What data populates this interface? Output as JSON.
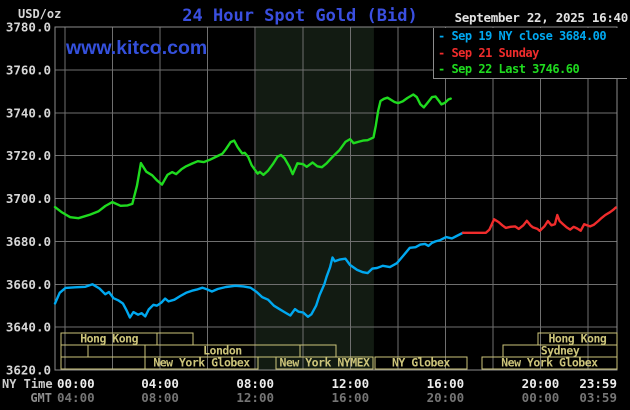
{
  "header": {
    "title": "24 Hour Spot Gold (Bid)",
    "unit_label": "USD/oz",
    "datetime": "September 22, 2025 16:40",
    "watermark": "www.kitco.com"
  },
  "axis_corner": {
    "ny_time_label": "NY Time",
    "gmt_label": "GMT"
  },
  "legend": {
    "rows": [
      {
        "label": "Sep 19 NY close 3684.00",
        "color": "#00a8f0"
      },
      {
        "label": "Sep 21 Sunday",
        "color": "#f02c2c"
      },
      {
        "label": "Sep 22 Last 3746.60",
        "color": "#1fdb1f"
      }
    ]
  },
  "chart_data": {
    "type": "line",
    "title": "24 Hour Spot Gold (Bid)",
    "ylabel": "USD/oz",
    "y_axis": {
      "min": 3620,
      "max": 3780,
      "step": 20
    },
    "x_ticks": [
      {
        "ny": "00:00",
        "gmt": "04:00"
      },
      {
        "ny": "04:00",
        "gmt": "08:00"
      },
      {
        "ny": "08:00",
        "gmt": "12:00"
      },
      {
        "ny": "12:00",
        "gmt": "16:00"
      },
      {
        "ny": "16:00",
        "gmt": "20:00"
      },
      {
        "ny": "20:00",
        "gmt": "00:00"
      },
      {
        "ny": "23:59",
        "gmt": "03:59"
      }
    ],
    "colors": {
      "grid": "#6f6f6f",
      "border": "#8c8c8c",
      "band": "#121b12",
      "session": "#ccc47a"
    },
    "nymex_band": {
      "start_h": 8.58,
      "end_h": 13.62
    },
    "sessions": [
      {
        "row": 0,
        "start_h": 0.26,
        "end_h": 4.36,
        "label": "Hong Kong"
      },
      {
        "row": 0,
        "start_h": 4.36,
        "end_h": 5.89,
        "label": ""
      },
      {
        "row": 0,
        "start_h": 20.62,
        "end_h": 24,
        "label": "Hong Kong"
      },
      {
        "row": 1,
        "start_h": 0.26,
        "end_h": 1.41,
        "label": ""
      },
      {
        "row": 1,
        "start_h": 1.41,
        "end_h": 3.84,
        "label": ""
      },
      {
        "row": 1,
        "start_h": 3.84,
        "end_h": 10.46,
        "label": "London"
      },
      {
        "row": 1,
        "start_h": 10.46,
        "end_h": 12.0,
        "label": ""
      },
      {
        "row": 1,
        "start_h": 19.13,
        "end_h": 24,
        "label": "Sydney"
      },
      {
        "row": 2,
        "start_h": 0.26,
        "end_h": 3.84,
        "label": ""
      },
      {
        "row": 2,
        "start_h": 3.84,
        "end_h": 8.67,
        "label": "New York Globex"
      },
      {
        "row": 2,
        "start_h": 9.44,
        "end_h": 13.58,
        "label": "New York NYMEX"
      },
      {
        "row": 2,
        "start_h": 13.66,
        "end_h": 17.59,
        "label": "NY Globex"
      },
      {
        "row": 2,
        "start_h": 18.23,
        "end_h": 24,
        "label": "New York Globex"
      }
    ],
    "series": [
      {
        "id": "sep19-ny-close",
        "name": "Sep 19 NY close 3684.00",
        "color": "#00a8f0",
        "points": [
          [
            0,
            3651
          ],
          [
            0.2,
            3656
          ],
          [
            0.45,
            3658.3
          ],
          [
            0.85,
            3658.6
          ],
          [
            1.3,
            3658.8
          ],
          [
            1.6,
            3660
          ],
          [
            1.9,
            3658
          ],
          [
            2.15,
            3655.3
          ],
          [
            2.3,
            3656.4
          ],
          [
            2.5,
            3653.5
          ],
          [
            2.7,
            3652.5
          ],
          [
            2.9,
            3651
          ],
          [
            3.05,
            3648
          ],
          [
            3.2,
            3644.5
          ],
          [
            3.35,
            3647
          ],
          [
            3.55,
            3645.8
          ],
          [
            3.7,
            3646.5
          ],
          [
            3.85,
            3645
          ],
          [
            4.0,
            3648.2
          ],
          [
            4.2,
            3650.4
          ],
          [
            4.35,
            3650
          ],
          [
            4.55,
            3651.5
          ],
          [
            4.7,
            3653.3
          ],
          [
            4.85,
            3652
          ],
          [
            5.1,
            3652.8
          ],
          [
            5.35,
            3654.5
          ],
          [
            5.6,
            3656
          ],
          [
            5.85,
            3657
          ],
          [
            6.05,
            3657.5
          ],
          [
            6.3,
            3658.4
          ],
          [
            6.5,
            3657.6
          ],
          [
            6.7,
            3656.6
          ],
          [
            6.95,
            3657.8
          ],
          [
            7.3,
            3658.7
          ],
          [
            7.7,
            3659.3
          ],
          [
            8.05,
            3659
          ],
          [
            8.35,
            3658.4
          ],
          [
            8.6,
            3656.5
          ],
          [
            8.85,
            3654
          ],
          [
            9.1,
            3652.8
          ],
          [
            9.35,
            3650
          ],
          [
            9.6,
            3648.3
          ],
          [
            9.8,
            3647
          ],
          [
            10.05,
            3645.4
          ],
          [
            10.25,
            3648.4
          ],
          [
            10.4,
            3647.2
          ],
          [
            10.6,
            3646.8
          ],
          [
            10.8,
            3644.8
          ],
          [
            10.95,
            3646
          ],
          [
            11.15,
            3650
          ],
          [
            11.3,
            3655
          ],
          [
            11.5,
            3660
          ],
          [
            11.6,
            3663.5
          ],
          [
            11.75,
            3668
          ],
          [
            11.85,
            3672.5
          ],
          [
            11.95,
            3670.7
          ],
          [
            12.15,
            3671.5
          ],
          [
            12.4,
            3671.9
          ],
          [
            12.6,
            3669
          ],
          [
            12.9,
            3666.7
          ],
          [
            13.15,
            3665.6
          ],
          [
            13.35,
            3665.2
          ],
          [
            13.55,
            3667.3
          ],
          [
            13.75,
            3667.6
          ],
          [
            14.0,
            3668.6
          ],
          [
            14.3,
            3668
          ],
          [
            14.6,
            3669.8
          ],
          [
            14.85,
            3673
          ],
          [
            15.15,
            3677
          ],
          [
            15.4,
            3677.3
          ],
          [
            15.6,
            3678.5
          ],
          [
            15.8,
            3678.8
          ],
          [
            15.95,
            3677.9
          ],
          [
            16.1,
            3679.3
          ],
          [
            16.25,
            3680
          ],
          [
            16.45,
            3680.6
          ],
          [
            16.7,
            3682
          ],
          [
            16.95,
            3681.4
          ],
          [
            17.15,
            3682.5
          ],
          [
            17.42,
            3684
          ]
        ]
      },
      {
        "id": "sep21-sunday",
        "name": "Sep 21 Sunday",
        "color": "#f02c2c",
        "points": [
          [
            17.42,
            3684
          ],
          [
            18.4,
            3684
          ],
          [
            18.55,
            3685.5
          ],
          [
            18.75,
            3690.3
          ],
          [
            18.95,
            3689
          ],
          [
            19.1,
            3687.5
          ],
          [
            19.25,
            3686.3
          ],
          [
            19.45,
            3686.8
          ],
          [
            19.65,
            3687
          ],
          [
            19.8,
            3685.8
          ],
          [
            20.0,
            3687.5
          ],
          [
            20.15,
            3689.6
          ],
          [
            20.3,
            3687.5
          ],
          [
            20.4,
            3686.6
          ],
          [
            20.6,
            3685.8
          ],
          [
            20.7,
            3684.9
          ],
          [
            20.9,
            3687
          ],
          [
            21.05,
            3689.5
          ],
          [
            21.2,
            3687.5
          ],
          [
            21.35,
            3688
          ],
          [
            21.45,
            3692.3
          ],
          [
            21.55,
            3689.5
          ],
          [
            21.7,
            3688
          ],
          [
            21.85,
            3686.5
          ],
          [
            22.0,
            3685.5
          ],
          [
            22.15,
            3686.8
          ],
          [
            22.3,
            3686
          ],
          [
            22.45,
            3685
          ],
          [
            22.6,
            3688
          ],
          [
            22.85,
            3687
          ],
          [
            23.0,
            3687.7
          ],
          [
            23.2,
            3689.5
          ],
          [
            23.35,
            3691
          ],
          [
            23.5,
            3692.3
          ],
          [
            23.7,
            3693.6
          ],
          [
            23.85,
            3694.8
          ],
          [
            23.95,
            3695.8
          ]
        ]
      },
      {
        "id": "sep22-last",
        "name": "Sep 22 Last 3746.60",
        "color": "#1fdb1f",
        "points": [
          [
            0,
            3696
          ],
          [
            0.3,
            3693.5
          ],
          [
            0.65,
            3691.3
          ],
          [
            1.0,
            3690.8
          ],
          [
            1.5,
            3692.5
          ],
          [
            1.85,
            3694
          ],
          [
            2.15,
            3696.5
          ],
          [
            2.45,
            3698.3
          ],
          [
            2.8,
            3696.6
          ],
          [
            3.1,
            3696.8
          ],
          [
            3.3,
            3697.5
          ],
          [
            3.5,
            3706
          ],
          [
            3.67,
            3716.5
          ],
          [
            3.9,
            3712.5
          ],
          [
            4.15,
            3710.8
          ],
          [
            4.35,
            3708.5
          ],
          [
            4.57,
            3706.5
          ],
          [
            4.8,
            3711
          ],
          [
            5.0,
            3712.3
          ],
          [
            5.17,
            3711.4
          ],
          [
            5.4,
            3713.6
          ],
          [
            5.6,
            3715
          ],
          [
            5.85,
            3716.3
          ],
          [
            6.1,
            3717.4
          ],
          [
            6.35,
            3717
          ],
          [
            6.6,
            3718
          ],
          [
            6.9,
            3719.6
          ],
          [
            7.15,
            3720.9
          ],
          [
            7.3,
            3723
          ],
          [
            7.5,
            3726.3
          ],
          [
            7.65,
            3727
          ],
          [
            7.8,
            3724
          ],
          [
            7.9,
            3722.4
          ],
          [
            8.0,
            3721
          ],
          [
            8.1,
            3721.3
          ],
          [
            8.25,
            3719.4
          ],
          [
            8.4,
            3715.5
          ],
          [
            8.55,
            3713.2
          ],
          [
            8.65,
            3711.6
          ],
          [
            8.75,
            3712.4
          ],
          [
            8.9,
            3711
          ],
          [
            9.1,
            3713
          ],
          [
            9.3,
            3716
          ],
          [
            9.5,
            3719.5
          ],
          [
            9.65,
            3720.3
          ],
          [
            9.8,
            3718.8
          ],
          [
            10.0,
            3715
          ],
          [
            10.15,
            3711.4
          ],
          [
            10.35,
            3716.4
          ],
          [
            10.6,
            3716
          ],
          [
            10.75,
            3714.8
          ],
          [
            11.0,
            3716.8
          ],
          [
            11.2,
            3715
          ],
          [
            11.4,
            3714.6
          ],
          [
            11.6,
            3716.4
          ],
          [
            11.8,
            3718.8
          ],
          [
            11.95,
            3720.5
          ],
          [
            12.15,
            3722.6
          ],
          [
            12.4,
            3726.4
          ],
          [
            12.6,
            3727.7
          ],
          [
            12.75,
            3725.8
          ],
          [
            12.95,
            3726.4
          ],
          [
            13.15,
            3727
          ],
          [
            13.35,
            3727.2
          ],
          [
            13.6,
            3728.5
          ],
          [
            13.7,
            3734
          ],
          [
            13.8,
            3741
          ],
          [
            13.9,
            3745.5
          ],
          [
            14.05,
            3746.5
          ],
          [
            14.2,
            3747
          ],
          [
            14.5,
            3745
          ],
          [
            14.65,
            3744.5
          ],
          [
            14.85,
            3745.3
          ],
          [
            15.05,
            3746.9
          ],
          [
            15.3,
            3748.5
          ],
          [
            15.45,
            3747.3
          ],
          [
            15.6,
            3744
          ],
          [
            15.75,
            3742.5
          ],
          [
            15.9,
            3744.5
          ],
          [
            16.1,
            3747.3
          ],
          [
            16.25,
            3747.6
          ],
          [
            16.4,
            3745.5
          ],
          [
            16.5,
            3743.9
          ],
          [
            16.65,
            3744.6
          ],
          [
            16.8,
            3746.2
          ],
          [
            16.9,
            3746.6
          ]
        ]
      }
    ]
  }
}
